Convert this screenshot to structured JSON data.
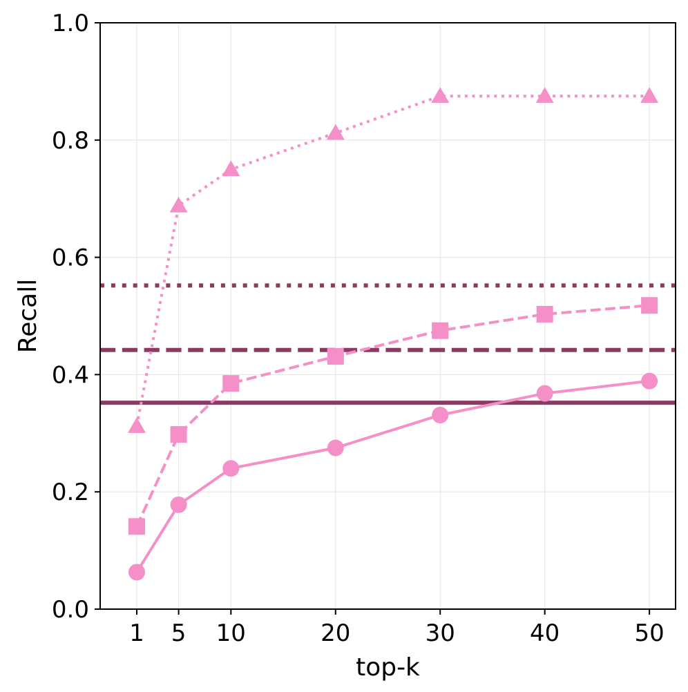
{
  "chart_data": {
    "type": "line",
    "title": "",
    "xlabel": "top-k",
    "ylabel": "Recall",
    "xlim": [
      -2.5,
      52.5
    ],
    "ylim": [
      0,
      1
    ],
    "x": [
      1,
      5,
      10,
      20,
      30,
      40,
      50
    ],
    "xticks": [
      1,
      5,
      10,
      20,
      30,
      40,
      50
    ],
    "xtick_labels": [
      "1",
      "5",
      "10",
      "20",
      "30",
      "40",
      "50"
    ],
    "yticks": [
      0,
      0.2,
      0.4,
      0.6,
      0.8,
      1.0
    ],
    "ytick_labels": [
      "0.0",
      "0.2",
      "0.4",
      "0.6",
      "0.8",
      "1.0"
    ],
    "grid": true,
    "series": [
      {
        "name": "circle-solid",
        "marker": "circle",
        "linestyle": "solid",
        "color": "#f48fc8",
        "values": [
          0.063,
          0.178,
          0.24,
          0.275,
          0.331,
          0.368,
          0.389
        ]
      },
      {
        "name": "square-dashed",
        "marker": "square",
        "linestyle": "dashed",
        "color": "#f48fc8",
        "values": [
          0.141,
          0.298,
          0.385,
          0.431,
          0.475,
          0.503,
          0.518
        ]
      },
      {
        "name": "triangle-dotted",
        "marker": "triangle",
        "linestyle": "dotted",
        "color": "#f48fc8",
        "values": [
          0.312,
          0.688,
          0.75,
          0.812,
          0.875,
          0.875,
          0.875
        ]
      }
    ],
    "reference_lines": [
      {
        "name": "baseline-solid",
        "y": 0.352,
        "linestyle": "solid",
        "color": "#8b3a62"
      },
      {
        "name": "baseline-dashed",
        "y": 0.442,
        "linestyle": "dashed",
        "color": "#8b3a62"
      },
      {
        "name": "baseline-dotted",
        "y": 0.552,
        "linestyle": "dotted",
        "color": "#8b3a62"
      }
    ]
  }
}
